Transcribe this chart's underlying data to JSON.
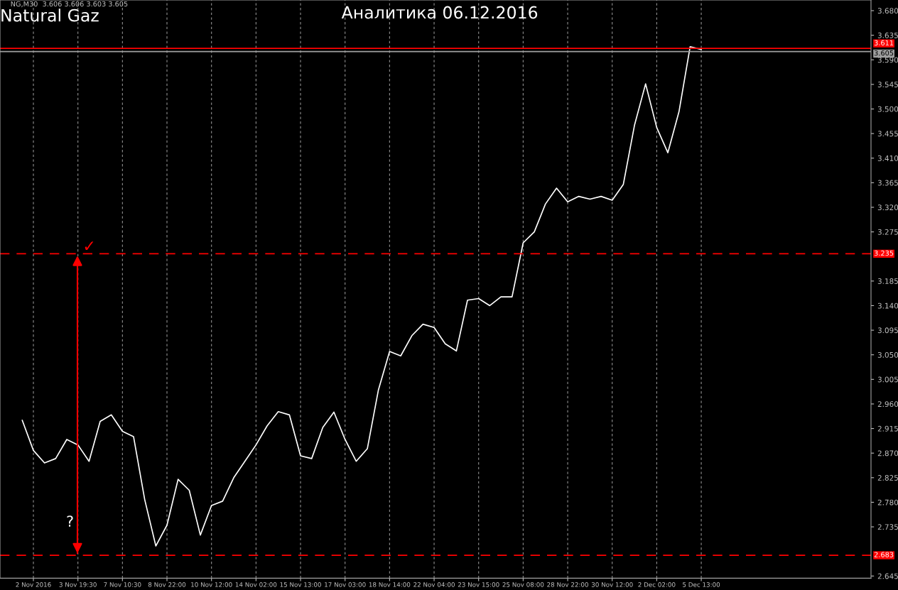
{
  "chart_data": {
    "type": "line",
    "title": "Natural Gaz",
    "subtitle": "Аналитика 06.12.2016",
    "annotations": [
      "NG,M30  3.606 3.606 3.603 3.605",
      "?",
      "✓"
    ],
    "categories": [
      null,
      "2 Nov 2016",
      null,
      null,
      null,
      "3 Nov 19:30",
      null,
      null,
      null,
      "7 Nov 10:30",
      null,
      null,
      null,
      "8 Nov 22:00",
      null,
      null,
      null,
      "10 Nov 12:00",
      null,
      null,
      null,
      "14 Nov 02:00",
      null,
      null,
      null,
      "15 Nov 13:00",
      null,
      null,
      null,
      "17 Nov 03:00",
      null,
      null,
      null,
      "18 Nov 14:00",
      null,
      null,
      null,
      "22 Nov 04:00",
      null,
      null,
      null,
      "23 Nov 15:00",
      null,
      null,
      null,
      "25 Nov 08:00",
      null,
      null,
      null,
      "28 Nov 22:00",
      null,
      null,
      null,
      "30 Nov 12:00",
      null,
      null,
      null,
      "2 Dec 02:00",
      null,
      null,
      null,
      "5 Dec 13:00"
    ],
    "series": [
      {
        "color": "#ffffff",
        "values": [
          2.93,
          2.875,
          2.852,
          2.86,
          2.895,
          2.885,
          2.855,
          2.928,
          2.94,
          2.91,
          2.9,
          2.785,
          2.7,
          2.738,
          2.822,
          2.802,
          2.72,
          2.774,
          2.782,
          2.825,
          2.855,
          2.885,
          2.92,
          2.946,
          2.94,
          2.865,
          2.86,
          2.917,
          2.945,
          2.895,
          2.855,
          2.878,
          2.986,
          3.056,
          3.048,
          3.085,
          3.106,
          3.1,
          3.07,
          3.057,
          3.15,
          3.153,
          3.14,
          3.156,
          3.156,
          3.255,
          3.275,
          3.326,
          3.355,
          3.33,
          3.34,
          3.335,
          3.34,
          3.333,
          3.362,
          3.47,
          3.546,
          3.466,
          3.42,
          3.495,
          3.614,
          3.609
        ]
      }
    ],
    "ylim": [
      2.641,
      3.6995
    ],
    "yticks": [
      {
        "value": 3.68,
        "label": "3.680"
      },
      {
        "value": 3.635,
        "label": "3.635"
      },
      {
        "value": 3.59,
        "label": "3.590"
      },
      {
        "value": 3.545,
        "label": "3.545"
      },
      {
        "value": 3.5,
        "label": "3.500"
      },
      {
        "value": 3.455,
        "label": "3.455"
      },
      {
        "value": 3.41,
        "label": "3.410"
      },
      {
        "value": 3.365,
        "label": "3.365"
      },
      {
        "value": 3.32,
        "label": "3.320"
      },
      {
        "value": 3.275,
        "label": "3.275"
      },
      {
        "value": 3.185,
        "label": "3.185"
      },
      {
        "value": 3.14,
        "label": "3.140"
      },
      {
        "value": 3.095,
        "label": "3.095"
      },
      {
        "value": 3.05,
        "label": "3.050"
      },
      {
        "value": 3.005,
        "label": "3.005"
      },
      {
        "value": 2.96,
        "label": "2.960"
      },
      {
        "value": 2.915,
        "label": "2.915"
      },
      {
        "value": 2.87,
        "label": "2.870"
      },
      {
        "value": 2.825,
        "label": "2.825"
      },
      {
        "value": 2.78,
        "label": "2.780"
      },
      {
        "value": 2.735,
        "label": "2.735"
      },
      {
        "value": 2.645,
        "label": "2.645"
      }
    ],
    "ref_lines": [
      {
        "axis": "y",
        "value": 3.611,
        "label": "3.611",
        "color": "#ff0000",
        "line_style": "solid"
      },
      {
        "axis": "y",
        "value": 3.605,
        "label": "3.605",
        "color": "#a0a0a0",
        "line_style": "solid"
      },
      {
        "axis": "y",
        "value": 3.235,
        "label": "3.235",
        "color": "#ff0000",
        "line_style": "dashed"
      },
      {
        "axis": "y",
        "value": 2.683,
        "label": "2.683",
        "color": "#ff0000",
        "line_style": "dashed"
      }
    ],
    "grid": "x",
    "line_style": "solid",
    "marker": "none"
  }
}
